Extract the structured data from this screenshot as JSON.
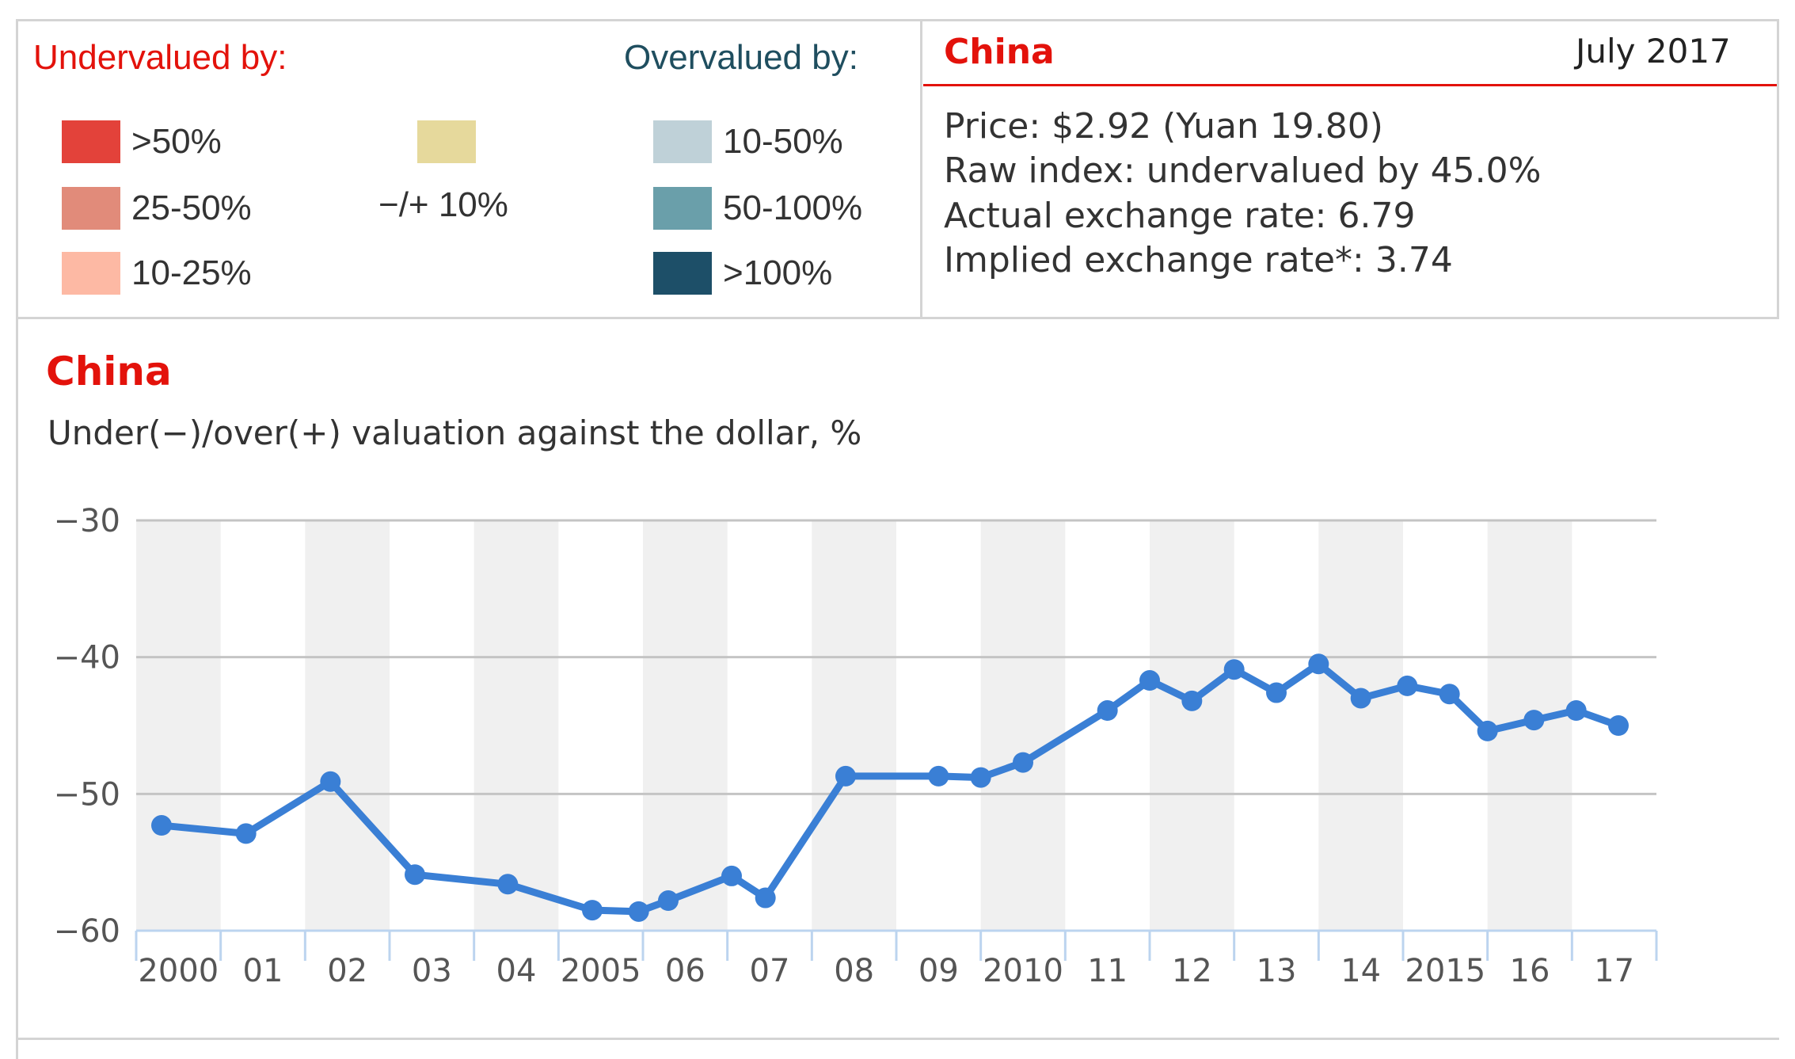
{
  "legend": {
    "undervalued_label": "Undervalued by:",
    "overvalued_label": "Overvalued by:",
    "undervalued": [
      {
        "label": ">50%",
        "color": "#e3423a"
      },
      {
        "label": "25-50%",
        "color": "#e18b7a"
      },
      {
        "label": "10-25%",
        "color": "#fdb9a4"
      }
    ],
    "neutral": {
      "label": "−/+ 10%",
      "color": "#e6d99c"
    },
    "overvalued": [
      {
        "label": "10-50%",
        "color": "#bfd1d8"
      },
      {
        "label": "50-100%",
        "color": "#6a9faa"
      },
      {
        "label": ">100%",
        "color": "#1d4f68"
      }
    ]
  },
  "info": {
    "country": "China",
    "date": "July 2017",
    "lines": [
      "Price: $2.92 (Yuan 19.80)",
      "Raw index: undervalued by 45.0%",
      "Actual exchange rate: 6.79",
      "Implied exchange rate*: 3.74"
    ]
  },
  "chart_data": {
    "type": "line",
    "title": "China",
    "subtitle": "Under(−)/over(+) valuation against the dollar, %",
    "x_tick_labels": [
      "2000",
      "01",
      "02",
      "03",
      "04",
      "2005",
      "06",
      "07",
      "08",
      "09",
      "2010",
      "11",
      "12",
      "13",
      "14",
      "2015",
      "16",
      "17"
    ],
    "x_range": [
      2000,
      2018
    ],
    "ylim": [
      -60,
      -30
    ],
    "y_ticks": [
      -30,
      -40,
      -50,
      -60
    ],
    "y_tick_labels": [
      "−30",
      "−40",
      "−50",
      "−60"
    ],
    "grid": "horizontal lines with alternating year bands",
    "line_color": "#3a7fd5",
    "band_color": "#f0f0f0",
    "points": [
      {
        "x": 2000.3,
        "y": -52.3
      },
      {
        "x": 2001.3,
        "y": -52.9
      },
      {
        "x": 2002.3,
        "y": -49.1
      },
      {
        "x": 2003.3,
        "y": -55.9
      },
      {
        "x": 2004.4,
        "y": -56.6
      },
      {
        "x": 2005.4,
        "y": -58.5
      },
      {
        "x": 2005.95,
        "y": -58.6
      },
      {
        "x": 2006.3,
        "y": -57.8
      },
      {
        "x": 2007.05,
        "y": -56.0
      },
      {
        "x": 2007.45,
        "y": -57.6
      },
      {
        "x": 2008.4,
        "y": -48.7
      },
      {
        "x": 2009.5,
        "y": -48.7
      },
      {
        "x": 2010.0,
        "y": -48.8
      },
      {
        "x": 2010.5,
        "y": -47.7
      },
      {
        "x": 2011.5,
        "y": -43.9
      },
      {
        "x": 2012.0,
        "y": -41.7
      },
      {
        "x": 2012.5,
        "y": -43.2
      },
      {
        "x": 2013.0,
        "y": -40.9
      },
      {
        "x": 2013.5,
        "y": -42.6
      },
      {
        "x": 2014.0,
        "y": -40.5
      },
      {
        "x": 2014.5,
        "y": -43.0
      },
      {
        "x": 2015.05,
        "y": -42.1
      },
      {
        "x": 2015.55,
        "y": -42.7
      },
      {
        "x": 2016.0,
        "y": -45.4
      },
      {
        "x": 2016.55,
        "y": -44.6
      },
      {
        "x": 2017.05,
        "y": -43.9
      },
      {
        "x": 2017.55,
        "y": -45.0
      }
    ]
  }
}
